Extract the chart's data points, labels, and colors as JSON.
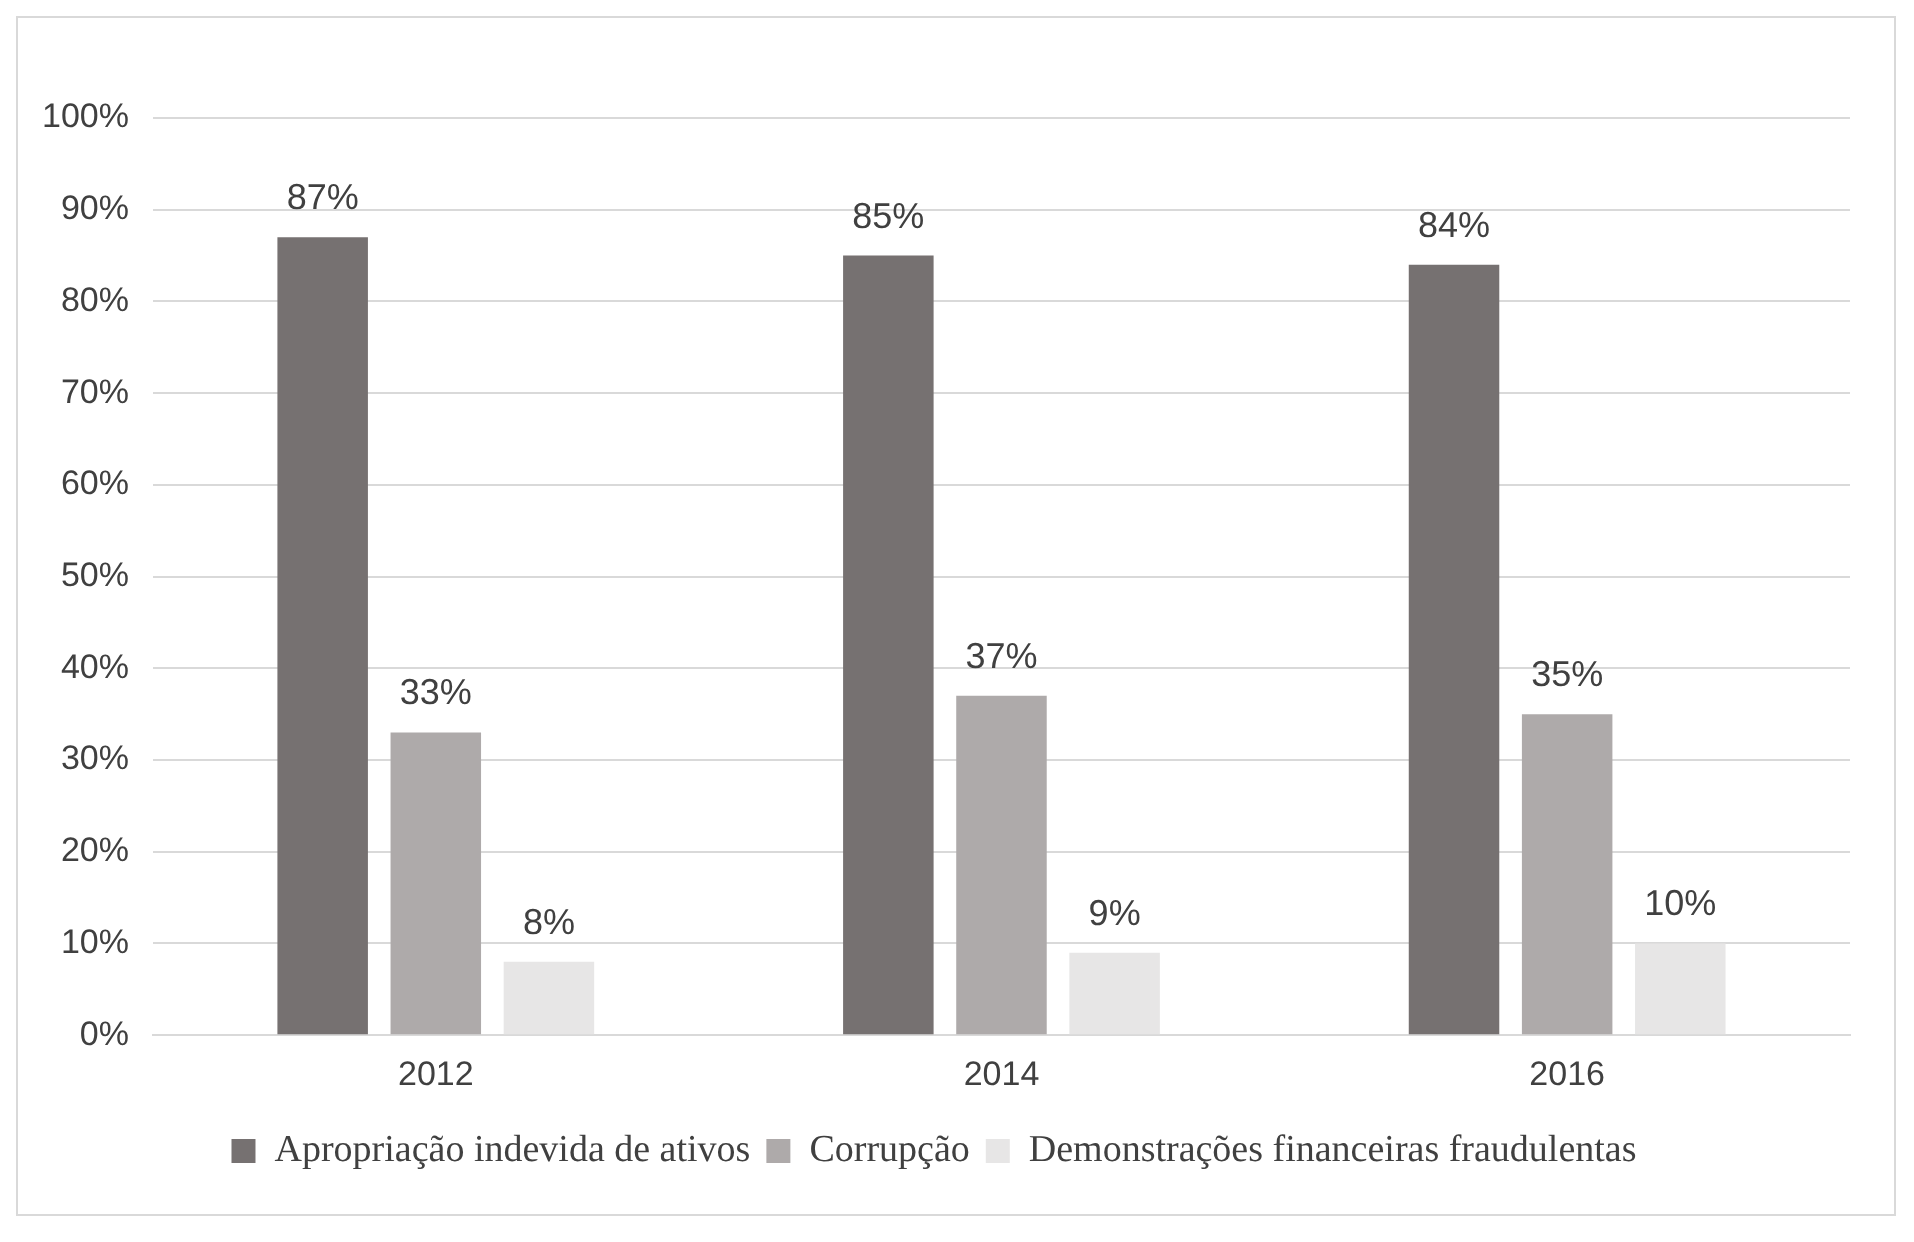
{
  "chart_data": {
    "type": "bar",
    "categories": [
      "2012",
      "2014",
      "2016"
    ],
    "series": [
      {
        "name": "Apropriação indevida de ativos",
        "color": "#767171",
        "values": [
          87,
          85,
          84
        ],
        "value_labels": [
          "87%",
          "85%",
          "84%"
        ]
      },
      {
        "name": "Corrupção",
        "color": "#aeaaaa",
        "values": [
          33,
          37,
          35
        ],
        "value_labels": [
          "33%",
          "37%",
          "35%"
        ]
      },
      {
        "name": "Demonstrações financeiras fraudulentas",
        "color": "#e7e6e6",
        "values": [
          8,
          9,
          10
        ],
        "value_labels": [
          "8%",
          "9%",
          "10%"
        ]
      }
    ],
    "ylim": [
      0,
      100
    ],
    "yticks": [
      {
        "value": 0,
        "label": "0%"
      },
      {
        "value": 10,
        "label": "10%"
      },
      {
        "value": 20,
        "label": "20%"
      },
      {
        "value": 30,
        "label": "30%"
      },
      {
        "value": 40,
        "label": "40%"
      },
      {
        "value": 50,
        "label": "50%"
      },
      {
        "value": 60,
        "label": "60%"
      },
      {
        "value": 70,
        "label": "70%"
      },
      {
        "value": 80,
        "label": "80%"
      },
      {
        "value": 90,
        "label": "90%"
      },
      {
        "value": 100,
        "label": "100%"
      }
    ],
    "grid": "y",
    "legend": "bottom"
  }
}
